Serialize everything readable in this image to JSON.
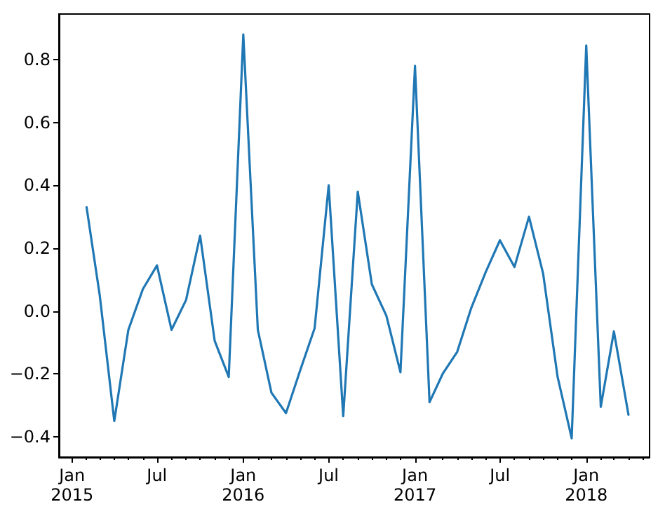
{
  "chart_data": {
    "type": "line",
    "x": [
      "2015-02",
      "2015-03",
      "2015-04",
      "2015-05",
      "2015-06",
      "2015-07",
      "2015-08",
      "2015-09",
      "2015-10",
      "2015-11",
      "2015-12",
      "2016-01",
      "2016-02",
      "2016-03",
      "2016-04",
      "2016-05",
      "2016-06",
      "2016-07",
      "2016-08",
      "2016-09",
      "2016-10",
      "2016-11",
      "2016-12",
      "2017-01",
      "2017-02",
      "2017-03",
      "2017-04",
      "2017-05",
      "2017-06",
      "2017-07",
      "2017-08",
      "2017-09",
      "2017-10",
      "2017-11",
      "2017-12",
      "2018-01",
      "2018-02",
      "2018-03",
      "2018-04"
    ],
    "series": [
      {
        "color": "#1f77b4",
        "values": [
          0.33,
          0.05,
          -0.35,
          -0.06,
          0.07,
          0.145,
          -0.06,
          0.035,
          0.24,
          -0.095,
          -0.21,
          0.88,
          -0.06,
          -0.26,
          -0.325,
          -0.19,
          -0.055,
          0.4,
          -0.335,
          0.38,
          0.085,
          -0.015,
          -0.195,
          0.78,
          -0.29,
          -0.2,
          -0.13,
          0.01,
          0.125,
          0.225,
          0.14,
          0.3,
          0.12,
          -0.21,
          -0.405,
          0.845,
          -0.305,
          -0.065,
          -0.33
        ]
      }
    ],
    "xlim": [
      "2014-12-04",
      "2018-05-16"
    ],
    "xticks": [
      {
        "value": "2015-01",
        "label": "Jan\n2015"
      },
      {
        "value": "2015-07",
        "label": "Jul"
      },
      {
        "value": "2016-01",
        "label": "Jan\n2016"
      },
      {
        "value": "2016-07",
        "label": "Jul"
      },
      {
        "value": "2017-01",
        "label": "Jan\n2017"
      },
      {
        "value": "2017-07",
        "label": "Jul"
      },
      {
        "value": "2018-01",
        "label": "Jan\n2018"
      }
    ],
    "ylim": [
      -0.465,
      0.945
    ],
    "yticks": [
      {
        "value": -0.4,
        "label": "−0.4"
      },
      {
        "value": -0.2,
        "label": "−0.2"
      },
      {
        "value": 0,
        "label": "0.0"
      },
      {
        "value": 0.2,
        "label": "0.2"
      },
      {
        "value": 0.4,
        "label": "0.4"
      },
      {
        "value": 0.6,
        "label": "0.6"
      },
      {
        "value": 0.8,
        "label": "0.8"
      }
    ],
    "marker": "none",
    "line_style": "solid"
  }
}
